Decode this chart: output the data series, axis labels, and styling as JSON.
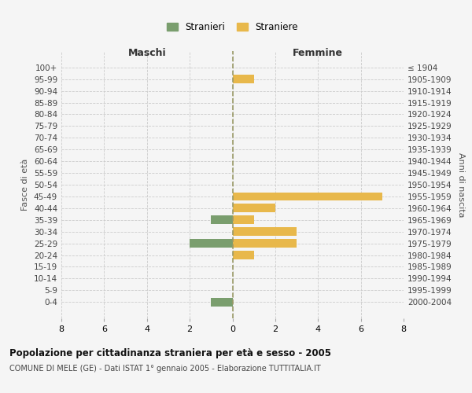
{
  "age_groups": [
    "100+",
    "95-99",
    "90-94",
    "85-89",
    "80-84",
    "75-79",
    "70-74",
    "65-69",
    "60-64",
    "55-59",
    "50-54",
    "45-49",
    "40-44",
    "35-39",
    "30-34",
    "25-29",
    "20-24",
    "15-19",
    "10-14",
    "5-9",
    "0-4"
  ],
  "birth_years": [
    "≤ 1904",
    "1905-1909",
    "1910-1914",
    "1915-1919",
    "1920-1924",
    "1925-1929",
    "1930-1934",
    "1935-1939",
    "1940-1944",
    "1945-1949",
    "1950-1954",
    "1955-1959",
    "1960-1964",
    "1965-1969",
    "1970-1974",
    "1975-1979",
    "1980-1984",
    "1985-1989",
    "1990-1994",
    "1995-1999",
    "2000-2004"
  ],
  "males": [
    0,
    0,
    0,
    0,
    0,
    0,
    0,
    0,
    0,
    0,
    0,
    0,
    0,
    1,
    0,
    2,
    0,
    0,
    0,
    0,
    1
  ],
  "females": [
    0,
    1,
    0,
    0,
    0,
    0,
    0,
    0,
    0,
    0,
    0,
    7,
    2,
    1,
    3,
    3,
    1,
    0,
    0,
    0,
    0
  ],
  "male_color": "#7a9e6e",
  "female_color": "#e8b84b",
  "title": "Popolazione per cittadinanza straniera per età e sesso - 2005",
  "subtitle": "COMUNE DI MELE (GE) - Dati ISTAT 1° gennaio 2005 - Elaborazione TUTTITALIA.IT",
  "xlabel_left": "Maschi",
  "xlabel_right": "Femmine",
  "ylabel_left": "Fasce di età",
  "ylabel_right": "Anni di nascita",
  "legend_male": "Stranieri",
  "legend_female": "Straniere",
  "xlim": 8,
  "background_color": "#f5f5f5",
  "grid_color": "#cccccc"
}
